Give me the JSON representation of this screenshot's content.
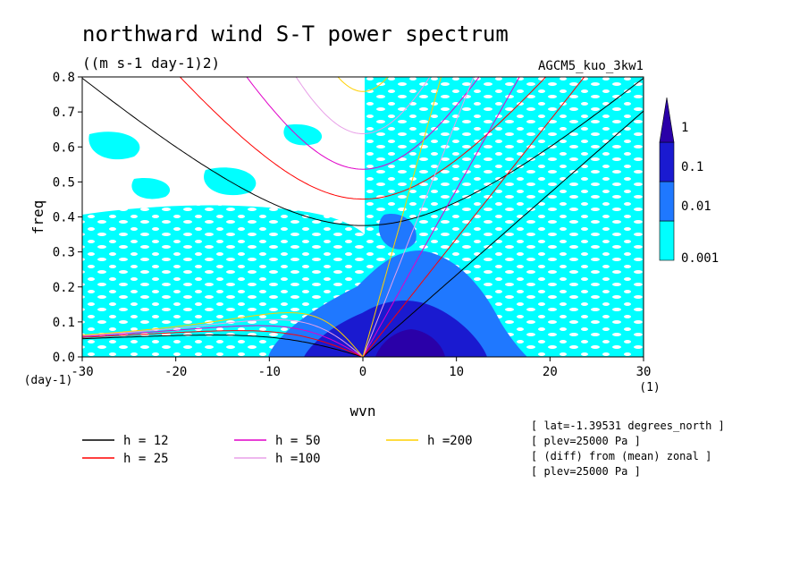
{
  "chart_data": {
    "type": "heatmap",
    "title": "northward wind S-T power spectrum",
    "units": "((m s-1 day-1)2)",
    "experiment": "AGCM5_kuo_3kw1",
    "xlabel": "wvn",
    "ylabel": "freq",
    "xunit": "(1)",
    "yunit": "(day-1)",
    "xlim": [
      -30,
      30
    ],
    "ylim": [
      0,
      0.8
    ],
    "xticks": [
      "-30",
      "-20",
      "-10",
      "0",
      "10",
      "20",
      "30"
    ],
    "yticks": [
      "0.0",
      "0.1",
      "0.2",
      "0.3",
      "0.4",
      "0.5",
      "0.6",
      "0.7",
      "0.8"
    ],
    "color_levels": [
      {
        "label": "0.001",
        "color": "#00ffff"
      },
      {
        "label": "0.01",
        "color": "#1f78ff"
      },
      {
        "label": "0.1",
        "color": "#1a1ad0"
      },
      {
        "label": "1",
        "color": "#2a00a8"
      }
    ],
    "dispersion_curves": [
      {
        "name": "h = 12",
        "h": 12,
        "color": "#000000"
      },
      {
        "name": "h = 25",
        "h": 25,
        "color": "#ff0000"
      },
      {
        "name": "h = 50",
        "h": 50,
        "color": "#e000c8"
      },
      {
        "name": "h =100",
        "h": 100,
        "color": "#e8a0e8"
      },
      {
        "name": "h =200",
        "h": 200,
        "color": "#ffd000"
      }
    ],
    "annotations": [
      "[ lat=-1.39531 degrees_north ]",
      "[ plev=25000 Pa ]",
      "[ (diff) from (mean) zonal ]",
      "[ plev=25000 Pa ]"
    ]
  }
}
